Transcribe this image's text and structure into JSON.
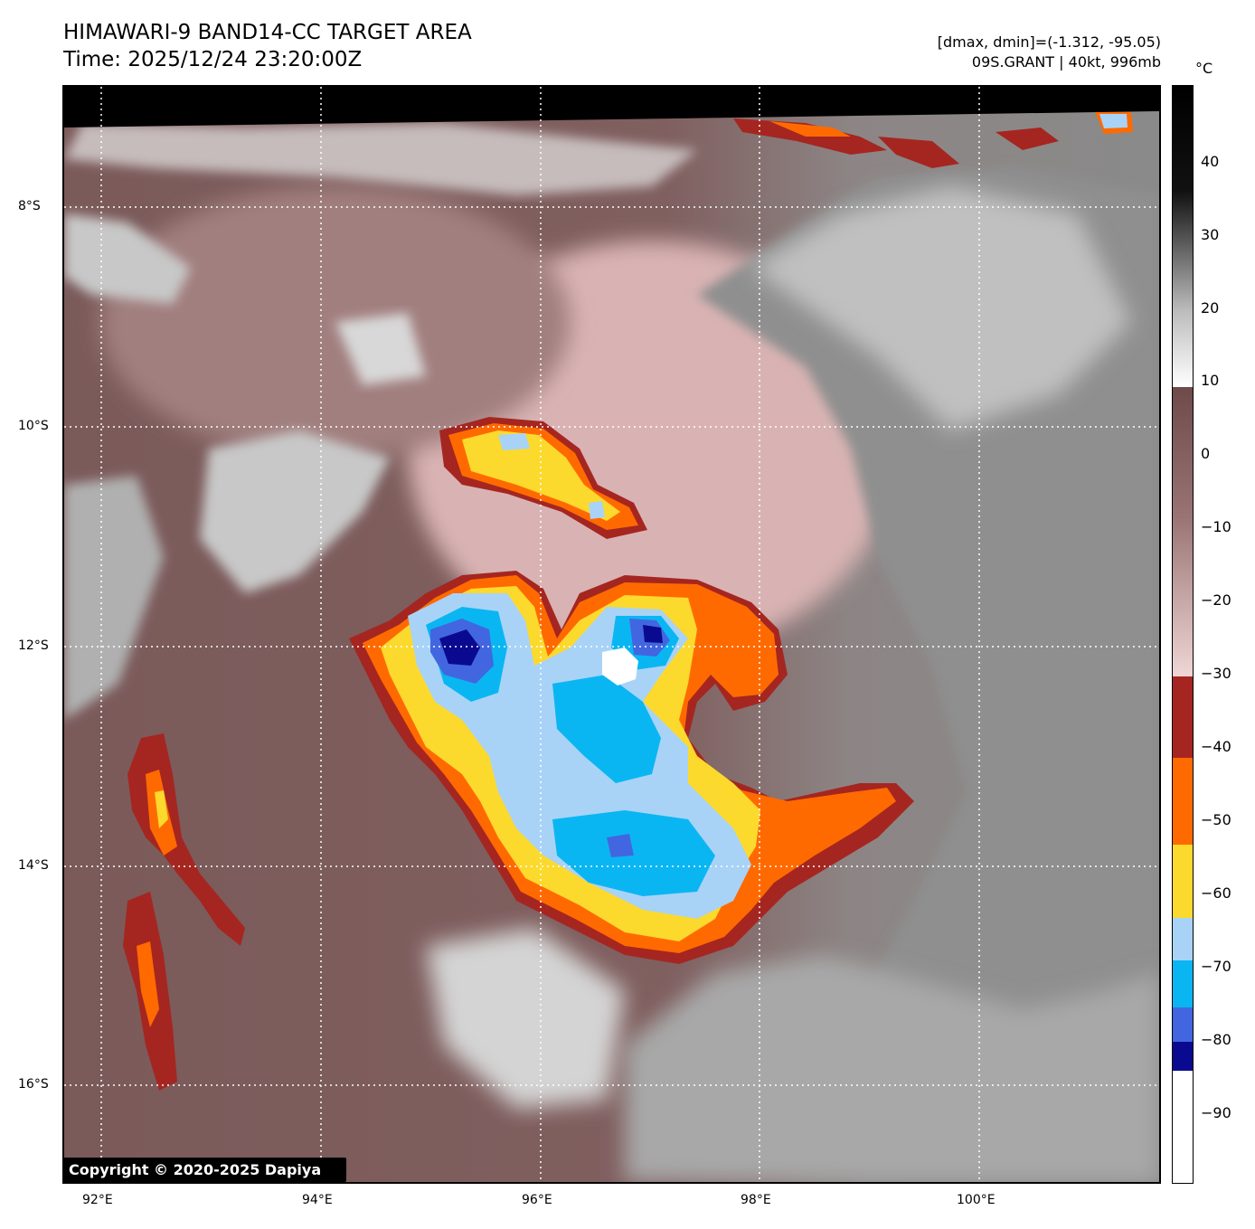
{
  "header": {
    "title_line1": "HIMAWARI-9 BAND14-CC TARGET AREA",
    "title_line2": "Time: 2025/12/24 23:20:00Z",
    "range_text": "[dmax, dmin]=(-1.312, -95.05)",
    "storm_text": "09S.GRANT | 40kt, 996mb"
  },
  "map": {
    "lat_labels": [
      "8°S",
      "10°S",
      "12°S",
      "14°S",
      "16°S"
    ],
    "lon_labels": [
      "92°E",
      "94°E",
      "96°E",
      "98°E",
      "100°E"
    ],
    "copyright": "Copyright © 2020-2025 Dapiya"
  },
  "colorbar": {
    "unit": "°C",
    "tick_labels": [
      "40",
      "30",
      "20",
      "10",
      "0",
      "−10",
      "−20",
      "−30",
      "−40",
      "−50",
      "−60",
      "−70",
      "−80",
      "−90"
    ],
    "colors": {
      "warm_gray": "#8a8a8a",
      "mauve": "#7d5b5b",
      "pink": "#e9c7c7",
      "red": "#a52620",
      "orange": "#ff6a00",
      "yellow": "#fcd92d",
      "light_blue": "#a8d3f7",
      "cyan": "#0ab6f2",
      "royal_blue": "#4266e0",
      "navy": "#0a0a90",
      "white": "#ffffff"
    }
  }
}
